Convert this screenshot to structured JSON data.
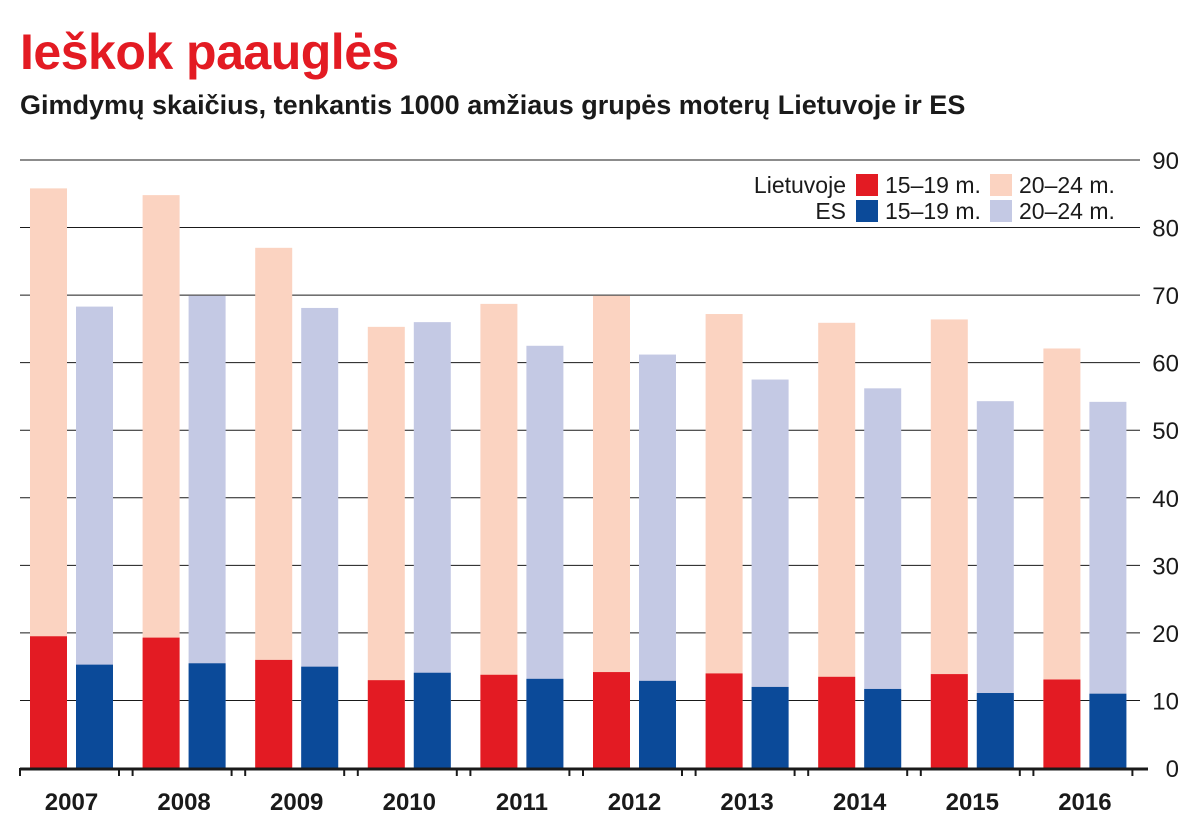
{
  "chart_data": {
    "type": "bar",
    "title": "Ieškok paauglės",
    "subtitle": "Gimdymų skaičius, tenkantis 1000 amžiaus grupės moterų Lietuvoje ir ES",
    "categories": [
      "2007",
      "2008",
      "2009",
      "2010",
      "2011",
      "2012",
      "2013",
      "2014",
      "2015",
      "2016"
    ],
    "groups": [
      {
        "name": "Lietuvoje",
        "series": [
          {
            "name": "15–19 m.",
            "color": "#e31b23",
            "values": [
              19.5,
              19.3,
              16.0,
              13.0,
              13.8,
              14.2,
              14.0,
              13.5,
              13.9,
              13.1
            ]
          },
          {
            "name": "20–24 m.",
            "color": "#fbd3c1",
            "values": [
              85.8,
              84.8,
              77.0,
              65.3,
              68.7,
              69.9,
              67.2,
              65.9,
              66.4,
              62.1
            ]
          }
        ]
      },
      {
        "name": "ES",
        "series": [
          {
            "name": "15–19 m.",
            "color": "#0b4a99",
            "values": [
              15.3,
              15.5,
              15.0,
              14.1,
              13.2,
              12.9,
              12.0,
              11.7,
              11.1,
              11.0
            ]
          },
          {
            "name": "20–24 m.",
            "color": "#c4c9e4",
            "values": [
              68.3,
              69.9,
              68.1,
              66.0,
              62.5,
              61.2,
              57.5,
              56.2,
              54.3,
              54.2
            ]
          }
        ]
      }
    ],
    "yaxis": {
      "position": "right",
      "min": 0,
      "max": 90,
      "ticks": [
        0,
        10,
        20,
        30,
        40,
        50,
        60,
        70,
        80,
        90
      ]
    },
    "grid": true,
    "legend_position": "top-right"
  }
}
